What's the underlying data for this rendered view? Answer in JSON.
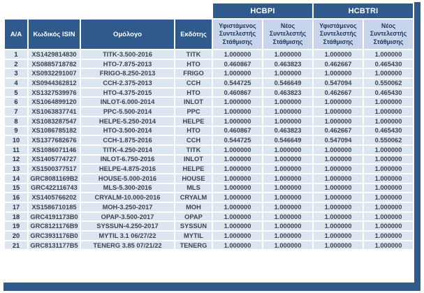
{
  "table": {
    "group_headers": [
      "HCBPI",
      "HCBTRI"
    ],
    "columns": [
      "Α/Α",
      "Κωδικός ISIN",
      "Ομόλογο",
      "Εκδότης"
    ],
    "sub_headers": [
      "Υφιστάμενος Συντελεστής Στάθμισης",
      "Νέος Συντελεστής Στάθμισης",
      "Υφιστάμενος Συντελεστής Στάθμισης",
      "Νέος Συντελεστής Στάθμισης"
    ],
    "rows": [
      {
        "num": "1",
        "isin": "XS1429814830",
        "bond": "TITK-3.500-2016",
        "issuer": "TITK",
        "values": [
          "1.000000",
          "1.000000",
          "1.000000",
          "1.000000"
        ]
      },
      {
        "num": "2",
        "isin": "XS0885718782",
        "bond": "HTO-7.875-2013",
        "issuer": "HTO",
        "values": [
          "0.460867",
          "0.463823",
          "0.462667",
          "0.465430"
        ]
      },
      {
        "num": "3",
        "isin": "XS0932291007",
        "bond": "FRIGO-8.250-2013",
        "issuer": "FRIGO",
        "values": [
          "1.000000",
          "1.000000",
          "1.000000",
          "1.000000"
        ]
      },
      {
        "num": "4",
        "isin": "XS0944362812",
        "bond": "CCH-2.375-2013",
        "issuer": "CCH",
        "values": [
          "0.544725",
          "0.546649",
          "0.547094",
          "0.550062"
        ]
      },
      {
        "num": "5",
        "isin": "XS1327539976",
        "bond": "HTO-4.375-2015",
        "issuer": "HTO",
        "values": [
          "0.460867",
          "0.463823",
          "0.462667",
          "0.465430"
        ]
      },
      {
        "num": "6",
        "isin": "XS1064899120",
        "bond": "INLOT-6.000-2014",
        "issuer": "INLOT",
        "values": [
          "1.000000",
          "1.000000",
          "1.000000",
          "1.000000"
        ]
      },
      {
        "num": "7",
        "isin": "XS1063837741",
        "bond": "PPC-5.500-2014",
        "issuer": "PPC",
        "values": [
          "1.000000",
          "1.000000",
          "1.000000",
          "1.000000"
        ]
      },
      {
        "num": "8",
        "isin": "XS1083287547",
        "bond": "HELPE-5.250-2014",
        "issuer": "HELPE",
        "values": [
          "1.000000",
          "1.000000",
          "1.000000",
          "1.000000"
        ]
      },
      {
        "num": "9",
        "isin": "XS1086785182",
        "bond": "HTO-3.500-2014",
        "issuer": "HTO",
        "values": [
          "0.460867",
          "0.463823",
          "0.462667",
          "0.465430"
        ]
      },
      {
        "num": "10",
        "isin": "XS1377682676",
        "bond": "CCH-1.875-2016",
        "issuer": "CCH",
        "values": [
          "0.544725",
          "0.546649",
          "0.547094",
          "0.550062"
        ]
      },
      {
        "num": "11",
        "isin": "XS1086071146",
        "bond": "TITK-4.250-2014",
        "issuer": "TITK",
        "values": [
          "1.000000",
          "1.000000",
          "1.000000",
          "1.000000"
        ]
      },
      {
        "num": "12",
        "isin": "XS1405774727",
        "bond": "INLOT-6.750-2016",
        "issuer": "INLOT",
        "values": [
          "1.000000",
          "1.000000",
          "1.000000",
          "1.000000"
        ]
      },
      {
        "num": "13",
        "isin": "XS1500377517",
        "bond": "HELPE-4.875-2016",
        "issuer": "HELPE",
        "values": [
          "1.000000",
          "1.000000",
          "1.000000",
          "1.000000"
        ]
      },
      {
        "num": "14",
        "isin": "GRC8081169B2",
        "bond": "HOUSE-5.000-2016",
        "issuer": "HOUSE",
        "values": [
          "1.000000",
          "1.000000",
          "1.000000",
          "1.000000"
        ]
      },
      {
        "num": "15",
        "isin": "GRC422116743",
        "bond": "MLS-5.300-2016",
        "issuer": "MLS",
        "values": [
          "1.000000",
          "1.000000",
          "1.000000",
          "1.000000"
        ]
      },
      {
        "num": "16",
        "isin": "XS1405766202",
        "bond": "CRYALM-10.000-2016",
        "issuer": "CRYALM",
        "values": [
          "1.000000",
          "1.000000",
          "1.000000",
          "1.000000"
        ]
      },
      {
        "num": "17",
        "isin": "XS1586710185",
        "bond": "MOH-3.250-2017",
        "issuer": "MOH",
        "values": [
          "1.000000",
          "1.000000",
          "1.000000",
          "1.000000"
        ]
      },
      {
        "num": "18",
        "isin": "GRC4191173B0",
        "bond": "OPAP-3.500-2017",
        "issuer": "OPAP",
        "values": [
          "1.000000",
          "1.000000",
          "1.000000",
          "1.000000"
        ]
      },
      {
        "num": "19",
        "isin": "GRC8121176B9",
        "bond": "SYSSUN-4.250-2017",
        "issuer": "SYSSUN",
        "values": [
          "1.000000",
          "1.000000",
          "1.000000",
          "1.000000"
        ]
      },
      {
        "num": "20",
        "isin": "GRC3931176B0",
        "bond": "MYTIL 3.1 06/27/22",
        "issuer": "MYTIL",
        "values": [
          "1.000000",
          "1.000000",
          "1.000000",
          "1.000000"
        ]
      },
      {
        "num": "21",
        "isin": "GRC8131177B5",
        "bond": "TENERG 3.85 07/21/22",
        "issuer": "TENERG",
        "values": [
          "1.000000",
          "1.000000",
          "1.000000",
          "1.000000"
        ]
      }
    ],
    "colors": {
      "header_blue": "#2f5a8b",
      "subheader_blue": "#c7d4e9",
      "row_blue": "#dce6f1",
      "header_text": "#ffffff",
      "subheader_text": "#1f3864"
    }
  }
}
